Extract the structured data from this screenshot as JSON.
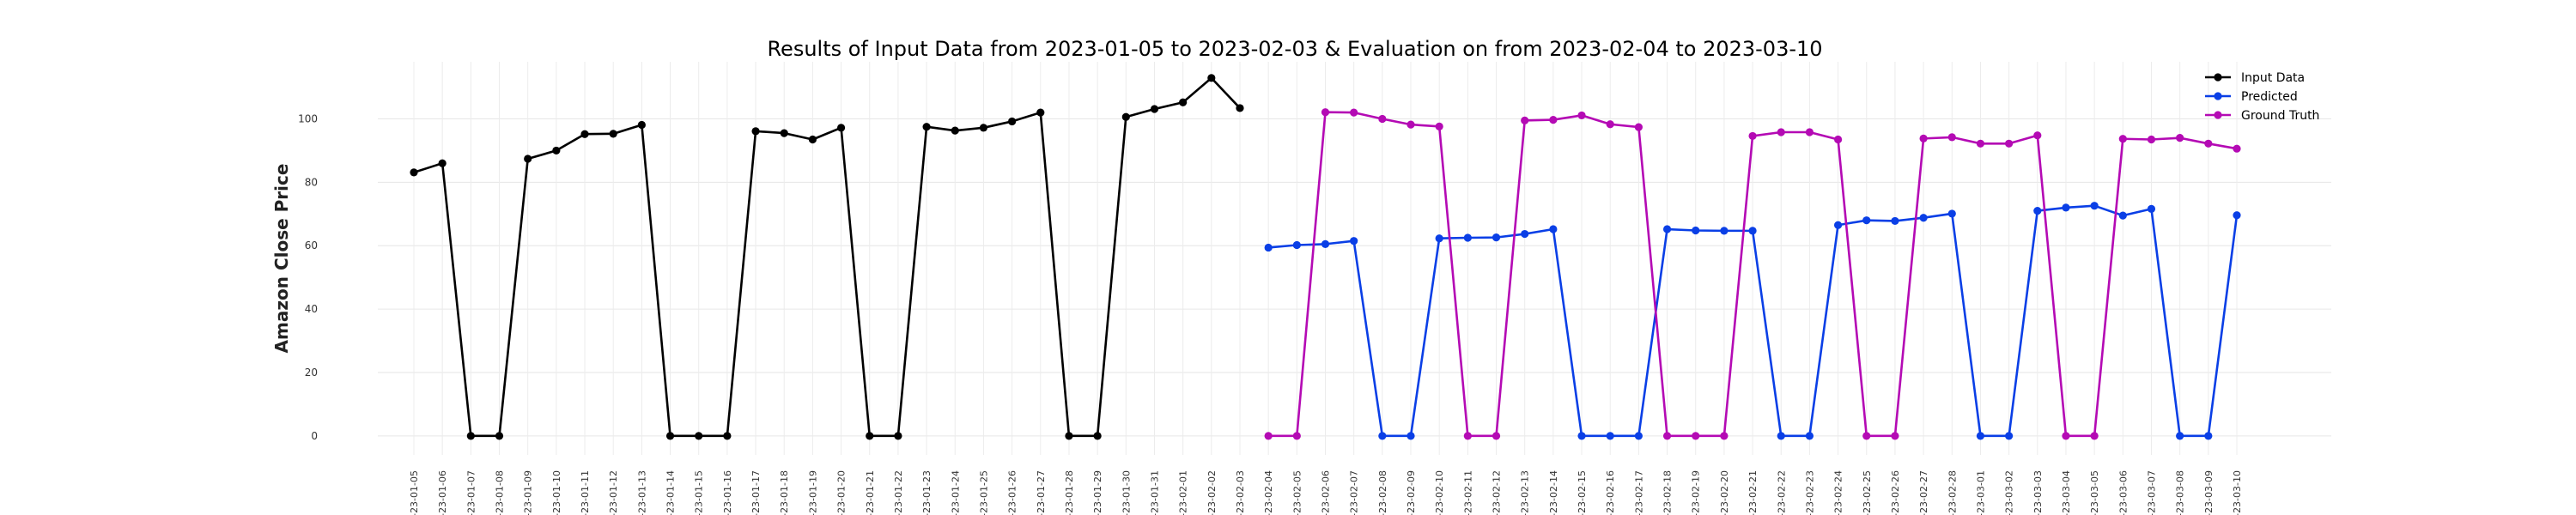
{
  "chart_data": {
    "type": "line",
    "title": "Results of Input Data from 2023-01-05 to 2023-02-03 & Evaluation on from 2023-02-04 to 2023-03-10",
    "xlabel": "",
    "ylabel": "Amazon Close Price",
    "ylim": [
      -6,
      118
    ],
    "yticks": [
      0,
      20,
      40,
      60,
      80,
      100
    ],
    "grid": true,
    "legend_position": "top-right",
    "x": [
      "2023-01-05",
      "2023-01-06",
      "2023-01-07",
      "2023-01-08",
      "2023-01-09",
      "2023-01-10",
      "2023-01-11",
      "2023-01-12",
      "2023-01-13",
      "2023-01-14",
      "2023-01-15",
      "2023-01-16",
      "2023-01-17",
      "2023-01-18",
      "2023-01-19",
      "2023-01-20",
      "2023-01-21",
      "2023-01-22",
      "2023-01-23",
      "2023-01-24",
      "2023-01-25",
      "2023-01-26",
      "2023-01-27",
      "2023-01-28",
      "2023-01-29",
      "2023-01-30",
      "2023-01-31",
      "2023-02-01",
      "2023-02-02",
      "2023-02-03",
      "2023-02-04",
      "2023-02-05",
      "2023-02-06",
      "2023-02-07",
      "2023-02-08",
      "2023-02-09",
      "2023-02-10",
      "2023-02-11",
      "2023-02-12",
      "2023-02-13",
      "2023-02-14",
      "2023-02-15",
      "2023-02-16",
      "2023-02-17",
      "2023-02-18",
      "2023-02-19",
      "2023-02-20",
      "2023-02-21",
      "2023-02-22",
      "2023-02-23",
      "2023-02-24",
      "2023-02-25",
      "2023-02-26",
      "2023-02-27",
      "2023-02-28",
      "2023-03-01",
      "2023-03-02",
      "2023-03-03",
      "2023-03-04",
      "2023-03-05",
      "2023-03-06",
      "2023-03-07",
      "2023-03-08",
      "2023-03-09",
      "2023-03-10"
    ],
    "x_tick_labels": [
      "-23-01-05",
      "-23-01-06",
      "-23-01-07",
      "-23-01-08",
      "-23-01-09",
      "-23-01-10",
      "-23-01-11",
      "-23-01-12",
      "-23-01-13",
      "-23-01-14",
      "-23-01-15",
      "-23-01-16",
      "-23-01-17",
      "-23-01-18",
      "-23-01-19",
      "-23-01-20",
      "-23-01-21",
      "-23-01-22",
      "-23-01-23",
      "-23-01-24",
      "-23-01-25",
      "-23-01-26",
      "-23-01-27",
      "-23-01-28",
      "-23-01-29",
      "-23-01-30",
      "-23-01-31",
      "-23-02-01",
      "-23-02-02",
      "-23-02-03",
      "-23-02-04",
      "-23-02-05",
      "-23-02-06",
      "-23-02-07",
      "-23-02-08",
      "-23-02-09",
      "-23-02-10",
      "-23-02-11",
      "-23-02-12",
      "-23-02-13",
      "-23-02-14",
      "-23-02-15",
      "-23-02-16",
      "-23-02-17",
      "-23-02-18",
      "-23-02-19",
      "-23-02-20",
      "-23-02-21",
      "-23-02-22",
      "-23-02-23",
      "-23-02-24",
      "-23-02-25",
      "-23-02-26",
      "-23-02-27",
      "-23-02-28",
      "-23-03-01",
      "-23-03-02",
      "-23-03-03",
      "-23-03-04",
      "-23-03-05",
      "-23-03-06",
      "-23-03-07",
      "-23-03-08",
      "-23-03-09",
      "-23-03-10"
    ],
    "series": [
      {
        "name": "Input Data",
        "color": "#000000",
        "x": [
          "2023-01-05",
          "2023-01-06",
          "2023-01-07",
          "2023-01-08",
          "2023-01-09",
          "2023-01-10",
          "2023-01-11",
          "2023-01-12",
          "2023-01-13",
          "2023-01-14",
          "2023-01-15",
          "2023-01-16",
          "2023-01-17",
          "2023-01-18",
          "2023-01-19",
          "2023-01-20",
          "2023-01-21",
          "2023-01-22",
          "2023-01-23",
          "2023-01-24",
          "2023-01-25",
          "2023-01-26",
          "2023-01-27",
          "2023-01-28",
          "2023-01-29",
          "2023-01-30",
          "2023-01-31",
          "2023-02-01",
          "2023-02-02",
          "2023-02-03"
        ],
        "values": [
          83.1,
          86.0,
          0,
          0,
          87.4,
          90.0,
          95.2,
          95.3,
          98.1,
          0,
          0,
          0,
          96.1,
          95.5,
          93.5,
          97.2,
          0,
          0,
          97.5,
          96.3,
          97.2,
          99.2,
          102.0,
          0,
          0,
          100.6,
          103.1,
          105.2,
          112.9,
          103.4
        ]
      },
      {
        "name": "Predicted",
        "color": "#0a3fe6",
        "x": [
          "2023-02-04",
          "2023-02-05",
          "2023-02-06",
          "2023-02-07",
          "2023-02-08",
          "2023-02-09",
          "2023-02-10",
          "2023-02-11",
          "2023-02-12",
          "2023-02-13",
          "2023-02-14",
          "2023-02-15",
          "2023-02-16",
          "2023-02-17",
          "2023-02-18",
          "2023-02-19",
          "2023-02-20",
          "2023-02-21",
          "2023-02-22",
          "2023-02-23",
          "2023-02-24",
          "2023-02-25",
          "2023-02-26",
          "2023-02-27",
          "2023-02-28",
          "2023-03-01",
          "2023-03-02",
          "2023-03-03",
          "2023-03-04",
          "2023-03-05",
          "2023-03-06",
          "2023-03-07",
          "2023-03-08",
          "2023-03-09",
          "2023-03-10"
        ],
        "values": [
          59.4,
          60.2,
          60.5,
          61.5,
          0,
          0,
          62.3,
          62.5,
          62.6,
          63.7,
          65.2,
          0,
          0,
          0,
          65.2,
          64.8,
          64.7,
          64.7,
          0,
          0,
          66.5,
          68.0,
          67.8,
          68.8,
          70.1,
          0,
          0,
          71.0,
          72.0,
          72.6,
          69.5,
          71.6,
          0,
          0,
          69.6
        ]
      },
      {
        "name": "Ground Truth",
        "color": "#b40ab4",
        "x": [
          "2023-02-04",
          "2023-02-05",
          "2023-02-06",
          "2023-02-07",
          "2023-02-08",
          "2023-02-09",
          "2023-02-10",
          "2023-02-11",
          "2023-02-12",
          "2023-02-13",
          "2023-02-14",
          "2023-02-15",
          "2023-02-16",
          "2023-02-17",
          "2023-02-18",
          "2023-02-19",
          "2023-02-20",
          "2023-02-21",
          "2023-02-22",
          "2023-02-23",
          "2023-02-24",
          "2023-02-25",
          "2023-02-26",
          "2023-02-27",
          "2023-02-28",
          "2023-03-01",
          "2023-03-02",
          "2023-03-03",
          "2023-03-04",
          "2023-03-05",
          "2023-03-06",
          "2023-03-07",
          "2023-03-08",
          "2023-03-09",
          "2023-03-10"
        ],
        "values": [
          0,
          0,
          102.1,
          102.0,
          100.0,
          98.2,
          97.6,
          0,
          0,
          99.5,
          99.7,
          101.1,
          98.3,
          97.4,
          0,
          0,
          0,
          94.6,
          95.8,
          95.8,
          93.5,
          0,
          0,
          93.8,
          94.2,
          92.2,
          92.2,
          94.8,
          0,
          0,
          93.7,
          93.5,
          94.0,
          92.2,
          90.6
        ]
      }
    ]
  }
}
